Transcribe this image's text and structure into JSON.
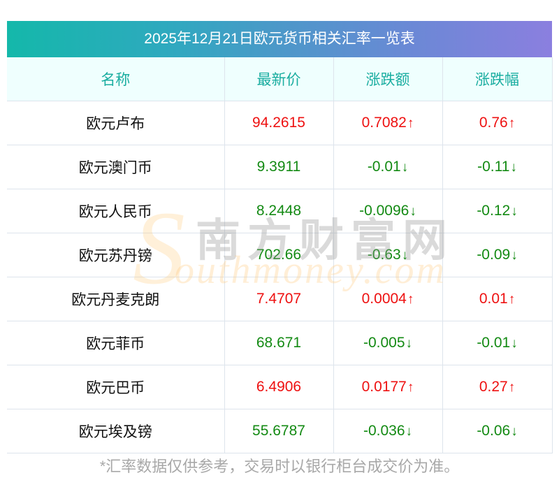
{
  "title": "2025年12月21日欧元货币相关汇率一览表",
  "columns": [
    "名称",
    "最新价",
    "涨跌额",
    "涨跌幅"
  ],
  "rows": [
    {
      "name": "欧元卢布",
      "price": "94.2615",
      "change": "0.7082",
      "pct": "0.76",
      "dir": "up",
      "arrow": "↑"
    },
    {
      "name": "欧元澳门币",
      "price": "9.3911",
      "change": "-0.01",
      "pct": "-0.11",
      "dir": "down",
      "arrow": "↓"
    },
    {
      "name": "欧元人民币",
      "price": "8.2448",
      "change": "-0.0096",
      "pct": "-0.12",
      "dir": "down",
      "arrow": "↓"
    },
    {
      "name": "欧元苏丹镑",
      "price": "702.66",
      "change": "-0.63",
      "pct": "-0.09",
      "dir": "down",
      "arrow": "↓"
    },
    {
      "name": "欧元丹麦克朗",
      "price": "7.4707",
      "change": "0.0004",
      "pct": "0.01",
      "dir": "up",
      "arrow": "↑"
    },
    {
      "name": "欧元菲币",
      "price": "68.671",
      "change": "-0.005",
      "pct": "-0.01",
      "dir": "down",
      "arrow": "↓"
    },
    {
      "name": "欧元巴币",
      "price": "6.4906",
      "change": "0.0177",
      "pct": "0.27",
      "dir": "up",
      "arrow": "↑"
    },
    {
      "name": "欧元埃及镑",
      "price": "55.6787",
      "change": "-0.036",
      "pct": "-0.06",
      "dir": "down",
      "arrow": "↓"
    }
  ],
  "footer": "*汇率数据仅供参考，交易时以银行柜台成交价为准。",
  "watermark": {
    "logo_letter": "S",
    "cn": "南方财富网",
    "en": "outhmoney.com"
  },
  "colors": {
    "up": "#ee1111",
    "down": "#138a13",
    "header_text": "#1aada0",
    "header_bg": "#effffe",
    "title_gradient_start": "#14b8aa",
    "title_gradient_end": "#8b7fdf"
  }
}
